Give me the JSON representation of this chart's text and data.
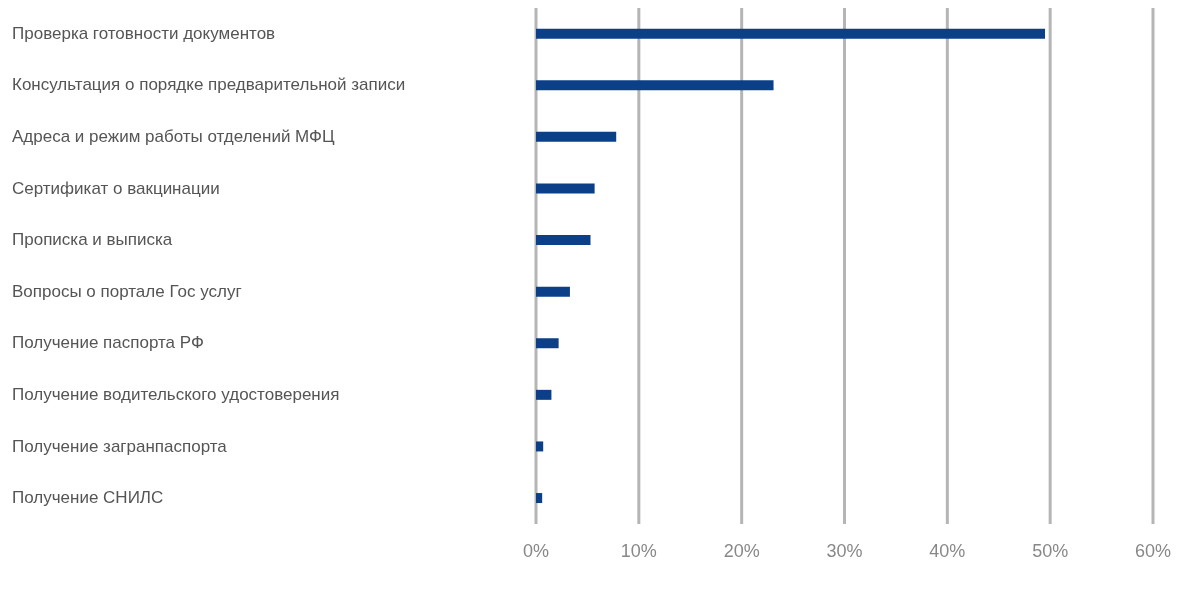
{
  "chart_data": {
    "type": "bar",
    "orientation": "horizontal",
    "categories": [
      "Проверка готовности документов",
      "Консультация о порядке предварительной записи",
      "Адреса и режим работы отделений МФЦ",
      "Сертификат о вакцинации",
      "Прописка и выписка",
      "Вопросы о портале Гос услуг",
      "Получение паспорта РФ",
      "Получение водительского удостоверения",
      "Получение загранпаспорта",
      "Получение СНИЛС"
    ],
    "values": [
      49.5,
      23.1,
      7.8,
      5.7,
      5.3,
      3.3,
      2.2,
      1.5,
      0.7,
      0.6
    ],
    "color": "#0b4089",
    "xlim": [
      0,
      60
    ],
    "xticks": [
      {
        "value": 0,
        "label": "0%"
      },
      {
        "value": 10,
        "label": "10%"
      },
      {
        "value": 20,
        "label": "20%"
      },
      {
        "value": 30,
        "label": "30%"
      },
      {
        "value": 40,
        "label": "40%"
      },
      {
        "value": 50,
        "label": "50%"
      },
      {
        "value": 60,
        "label": "60%"
      }
    ],
    "grid": "x"
  }
}
